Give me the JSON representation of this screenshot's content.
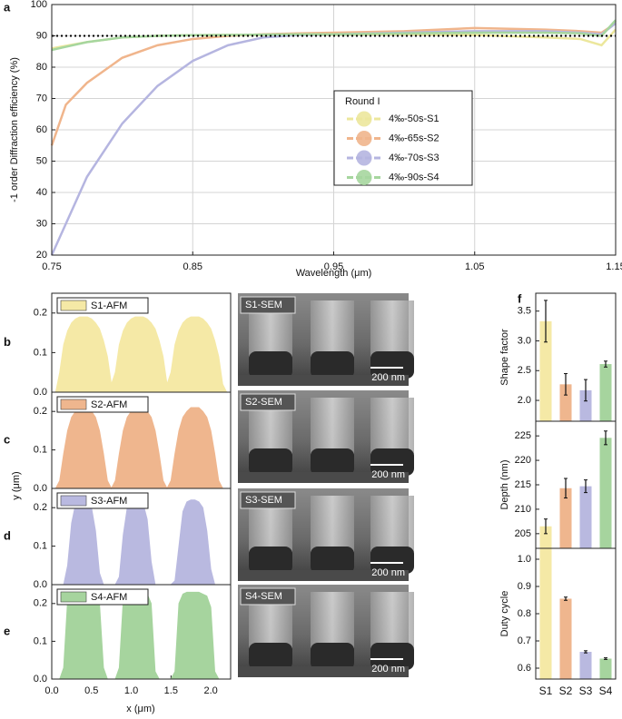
{
  "chart_data": [
    {
      "type": "line",
      "panel_label": "a",
      "xlabel": "Wavelength (μm)",
      "ylabel": "-1 order Diffraction efficiency (%)",
      "x": [
        0.75,
        0.76,
        0.775,
        0.8,
        0.825,
        0.85,
        0.875,
        0.9,
        0.925,
        0.95,
        1.0,
        1.05,
        1.1,
        1.125,
        1.14,
        1.15
      ],
      "series": [
        {
          "name": "4‰-50s-S1",
          "color": "#ece79c",
          "values": [
            86,
            86.8,
            88,
            89.5,
            90,
            90.2,
            90.3,
            90.3,
            90.4,
            90.4,
            90.5,
            90.3,
            89.5,
            89,
            87,
            92
          ]
        },
        {
          "name": "4‰-65s-S2",
          "color": "#f0b58c",
          "values": [
            55,
            68,
            75,
            83,
            87,
            89,
            90,
            90.5,
            90.8,
            91,
            91.5,
            92.5,
            92,
            91.5,
            91,
            94
          ]
        },
        {
          "name": "4‰-70s-S3",
          "color": "#b5b5e0",
          "values": [
            20,
            30,
            45,
            62,
            74,
            82,
            87,
            89.5,
            90.3,
            90.5,
            91,
            91.5,
            91.5,
            91,
            90.5,
            94
          ]
        },
        {
          "name": "4‰-90s-S4",
          "color": "#a6d69e",
          "values": [
            85.5,
            86.5,
            88,
            89.5,
            90,
            90.2,
            90.3,
            90.4,
            90.5,
            90.5,
            90.8,
            91,
            91,
            90.8,
            90,
            95
          ]
        }
      ],
      "reference_line": 90,
      "legend_title": "Round I",
      "legend": "center-right",
      "grid": true,
      "xlim": [
        0.75,
        1.15
      ],
      "xticks": [
        0.75,
        0.85,
        0.95,
        1.05,
        1.15
      ],
      "ylim": [
        20,
        100
      ],
      "yticks": [
        20,
        30,
        40,
        50,
        60,
        70,
        80,
        90,
        100
      ]
    },
    {
      "type": "area",
      "panel_label": "b",
      "label": "S1-AFM",
      "color": "#f5e9a6",
      "x": [
        0,
        0.05,
        0.1,
        0.15,
        0.2,
        0.25,
        0.3,
        0.35,
        0.4,
        0.45,
        0.5,
        0.55,
        0.6,
        0.65,
        0.7,
        0.75,
        0.8,
        0.85,
        0.9,
        0.95,
        1.0,
        1.05,
        1.1,
        1.15,
        1.2,
        1.25,
        1.3,
        1.35,
        1.4,
        1.45,
        1.5,
        1.55,
        1.6,
        1.65,
        1.7,
        1.75,
        1.8,
        1.85,
        1.9,
        1.95,
        2.0,
        2.05,
        2.1,
        2.15,
        2.2
      ],
      "values": [
        0,
        0,
        0.05,
        0.12,
        0.155,
        0.175,
        0.185,
        0.19,
        0.19,
        0.19,
        0.185,
        0.175,
        0.16,
        0.13,
        0.09,
        0.02,
        0.05,
        0.12,
        0.155,
        0.175,
        0.185,
        0.19,
        0.19,
        0.19,
        0.185,
        0.175,
        0.16,
        0.13,
        0.09,
        0.02,
        0.05,
        0.12,
        0.155,
        0.175,
        0.185,
        0.19,
        0.19,
        0.19,
        0.185,
        0.175,
        0.16,
        0.13,
        0.09,
        0.02,
        0
      ],
      "xlim": [
        0,
        2.25
      ],
      "ylim": [
        0,
        0.25
      ],
      "yticks": [
        {
          "value": 0,
          "label": "0.0"
        },
        0.1,
        0.2
      ]
    },
    {
      "type": "area",
      "panel_label": "c",
      "label": "S2-AFM",
      "color": "#efb68e",
      "ylabel": "y (μm)",
      "x": [
        0,
        0.05,
        0.1,
        0.15,
        0.2,
        0.25,
        0.3,
        0.35,
        0.4,
        0.45,
        0.5,
        0.55,
        0.6,
        0.65,
        0.7,
        0.75,
        0.8,
        0.85,
        0.9,
        0.95,
        1.0,
        1.05,
        1.1,
        1.15,
        1.2,
        1.25,
        1.3,
        1.35,
        1.4,
        1.45,
        1.5,
        1.55,
        1.6,
        1.65,
        1.7,
        1.75,
        1.8,
        1.85,
        1.9,
        1.95,
        2.0,
        2.05,
        2.1,
        2.15,
        2.2
      ],
      "values": [
        0,
        0,
        0.02,
        0.09,
        0.15,
        0.185,
        0.2,
        0.21,
        0.21,
        0.21,
        0.2,
        0.185,
        0.15,
        0.09,
        0.02,
        0,
        0.02,
        0.09,
        0.15,
        0.185,
        0.2,
        0.21,
        0.21,
        0.21,
        0.2,
        0.185,
        0.15,
        0.09,
        0.02,
        0,
        0.02,
        0.09,
        0.15,
        0.185,
        0.2,
        0.21,
        0.21,
        0.21,
        0.2,
        0.185,
        0.15,
        0.09,
        0.02,
        0,
        0
      ],
      "xlim": [
        0,
        2.25
      ],
      "ylim": [
        0,
        0.25
      ],
      "yticks": [
        {
          "value": 0,
          "label": "0.0"
        },
        0.1,
        0.2
      ]
    },
    {
      "type": "area",
      "panel_label": "d",
      "label": "S3-AFM",
      "color": "#b9b9e0",
      "x": [
        0,
        0.05,
        0.1,
        0.15,
        0.2,
        0.25,
        0.3,
        0.35,
        0.4,
        0.45,
        0.5,
        0.55,
        0.6,
        0.65,
        0.7,
        0.75,
        0.8,
        0.85,
        0.9,
        0.95,
        1.0,
        1.05,
        1.1,
        1.15,
        1.2,
        1.25,
        1.3,
        1.35,
        1.4,
        1.45,
        1.5,
        1.55,
        1.6,
        1.65,
        1.7,
        1.75,
        1.8,
        1.85,
        1.9,
        1.95,
        2.0,
        2.05,
        2.1,
        2.15,
        2.2
      ],
      "values": [
        0,
        0,
        0,
        0,
        0.05,
        0.16,
        0.21,
        0.22,
        0.22,
        0.215,
        0.2,
        0.14,
        0.03,
        0,
        0,
        0,
        0,
        0.02,
        0.13,
        0.2,
        0.215,
        0.22,
        0.22,
        0.21,
        0.17,
        0.06,
        0,
        0,
        0,
        0,
        0,
        0.01,
        0.1,
        0.19,
        0.215,
        0.22,
        0.22,
        0.215,
        0.2,
        0.14,
        0.04,
        0,
        0,
        0,
        0
      ],
      "xlim": [
        0,
        2.25
      ],
      "ylim": [
        0,
        0.25
      ],
      "yticks": [
        {
          "value": 0,
          "label": "0.0"
        },
        0.1,
        0.2
      ]
    },
    {
      "type": "area",
      "panel_label": "e",
      "label": "S4-AFM",
      "color": "#a6d49e",
      "xlabel": "x (μm)",
      "x": [
        0,
        0.05,
        0.1,
        0.15,
        0.2,
        0.25,
        0.3,
        0.35,
        0.4,
        0.45,
        0.5,
        0.55,
        0.6,
        0.65,
        0.7,
        0.75,
        0.8,
        0.85,
        0.9,
        0.95,
        1.0,
        1.05,
        1.1,
        1.15,
        1.2,
        1.25,
        1.3,
        1.35,
        1.4,
        1.45,
        1.5,
        1.55,
        1.6,
        1.65,
        1.7,
        1.75,
        1.8,
        1.85,
        1.9,
        1.95,
        2.0,
        2.05,
        2.1,
        2.15,
        2.2
      ],
      "values": [
        0,
        0,
        0,
        0.03,
        0.21,
        0.23,
        0.23,
        0.23,
        0.23,
        0.23,
        0.225,
        0.22,
        0.2,
        0.03,
        0,
        0,
        0,
        0.03,
        0.21,
        0.225,
        0.23,
        0.23,
        0.23,
        0.23,
        0.225,
        0.2,
        0.02,
        0,
        0,
        0,
        0,
        0.02,
        0.2,
        0.225,
        0.23,
        0.23,
        0.23,
        0.23,
        0.225,
        0.22,
        0.19,
        0.02,
        0,
        0,
        0
      ],
      "xlim": [
        0,
        2.25
      ],
      "xticks": [
        {
          "value": 0,
          "label": "0.0"
        },
        0.5,
        {
          "value": 1,
          "label": "1.0"
        },
        1.5,
        {
          "value": 2,
          "label": "2.0"
        }
      ],
      "ylim": [
        0,
        0.25
      ],
      "yticks": [
        {
          "value": 0,
          "label": "0.0"
        },
        0.1,
        0.2
      ]
    },
    {
      "type": "bar",
      "panel_label": "f",
      "ylabel": "Shape factor",
      "colors": [
        "#f5e9a6",
        "#efb68e",
        "#b9b9e0",
        "#a6d49e"
      ],
      "values": [
        3.33,
        2.27,
        2.17,
        2.61
      ],
      "errors": [
        0.35,
        0.18,
        0.18,
        0.05
      ],
      "ylim": [
        1.65,
        3.8
      ],
      "yticks": [
        {
          "value": 2,
          "label": "2.0"
        },
        2.5,
        {
          "value": 3,
          "label": "3.0"
        },
        3.5
      ]
    },
    {
      "type": "bar",
      "ylabel": "Depth (nm)",
      "colors": [
        "#f5e9a6",
        "#efb68e",
        "#b9b9e0",
        "#a6d49e"
      ],
      "values": [
        206.5,
        214.3,
        214.7,
        224.6
      ],
      "errors": [
        1.5,
        2.0,
        1.3,
        1.4
      ],
      "ylim": [
        202,
        228
      ],
      "yticks": [
        205,
        210,
        215,
        220,
        225
      ]
    },
    {
      "type": "bar",
      "ylabel": "Duty cycle",
      "colors": [
        "#f5e9a6",
        "#efb68e",
        "#b9b9e0",
        "#a6d49e"
      ],
      "categories": [
        "S1",
        "S2",
        "S3",
        "S4"
      ],
      "values": [
        1.04,
        0.855,
        0.66,
        0.635
      ],
      "errors": [
        0,
        0.006,
        0.004,
        0.003
      ],
      "ylim": [
        0.56,
        1.04
      ],
      "yticks": [
        0.6,
        0.7,
        0.8,
        0.9,
        {
          "value": 1,
          "label": "1.0"
        }
      ]
    }
  ],
  "sem_panels": [
    {
      "label": "S1-SEM",
      "scale_bar": "200 nm"
    },
    {
      "label": "S2-SEM",
      "scale_bar": "200 nm"
    },
    {
      "label": "S3-SEM",
      "scale_bar": "200 nm"
    },
    {
      "label": "S4-SEM",
      "scale_bar": "200 nm"
    }
  ]
}
